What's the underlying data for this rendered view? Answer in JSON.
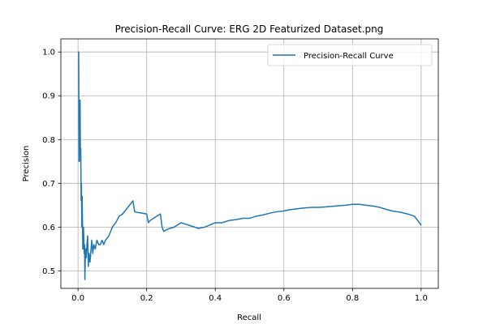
{
  "chart_data": {
    "type": "line",
    "title": "Precision-Recall Curve: ERG 2D Featurized Dataset.png",
    "xlabel": "Recall",
    "ylabel": "Precision",
    "xlim": [
      -0.05,
      1.05
    ],
    "ylim": [
      0.46,
      1.03
    ],
    "x_ticks": [
      0.0,
      0.2,
      0.4,
      0.6,
      0.8,
      1.0
    ],
    "x_tick_labels": [
      "0.0",
      "0.2",
      "0.4",
      "0.6",
      "0.8",
      "1.0"
    ],
    "y_ticks": [
      0.5,
      0.6,
      0.7,
      0.8,
      0.9,
      1.0
    ],
    "y_tick_labels": [
      "0.5",
      "0.6",
      "0.7",
      "0.8",
      "0.9",
      "1.0"
    ],
    "grid": true,
    "legend_position": "top-right",
    "series": [
      {
        "name": "Precision-Recall Curve",
        "color": "#1f77b4",
        "x": [
          0.0,
          0.002,
          0.003,
          0.004,
          0.005,
          0.006,
          0.007,
          0.008,
          0.009,
          0.01,
          0.011,
          0.012,
          0.014,
          0.016,
          0.018,
          0.019,
          0.02,
          0.021,
          0.022,
          0.024,
          0.026,
          0.028,
          0.03,
          0.032,
          0.035,
          0.038,
          0.04,
          0.043,
          0.046,
          0.05,
          0.055,
          0.06,
          0.065,
          0.07,
          0.075,
          0.08,
          0.09,
          0.1,
          0.11,
          0.12,
          0.13,
          0.14,
          0.15,
          0.16,
          0.165,
          0.17,
          0.2,
          0.205,
          0.21,
          0.22,
          0.23,
          0.24,
          0.245,
          0.25,
          0.26,
          0.28,
          0.3,
          0.32,
          0.34,
          0.35,
          0.37,
          0.4,
          0.42,
          0.44,
          0.46,
          0.48,
          0.5,
          0.52,
          0.54,
          0.56,
          0.58,
          0.6,
          0.62,
          0.65,
          0.68,
          0.7,
          0.72,
          0.75,
          0.78,
          0.8,
          0.82,
          0.84,
          0.86,
          0.88,
          0.9,
          0.92,
          0.94,
          0.96,
          0.98,
          0.99,
          1.0
        ],
        "y": [
          1.0,
          1.0,
          0.75,
          0.86,
          0.8,
          0.89,
          0.75,
          0.78,
          0.66,
          0.7,
          0.6,
          0.67,
          0.55,
          0.6,
          0.54,
          0.56,
          0.48,
          0.52,
          0.55,
          0.53,
          0.56,
          0.58,
          0.51,
          0.54,
          0.52,
          0.55,
          0.57,
          0.54,
          0.56,
          0.55,
          0.57,
          0.56,
          0.56,
          0.57,
          0.56,
          0.57,
          0.58,
          0.6,
          0.61,
          0.625,
          0.63,
          0.64,
          0.65,
          0.66,
          0.635,
          0.634,
          0.63,
          0.61,
          0.615,
          0.62,
          0.625,
          0.63,
          0.6,
          0.59,
          0.595,
          0.6,
          0.61,
          0.605,
          0.6,
          0.597,
          0.6,
          0.61,
          0.61,
          0.615,
          0.617,
          0.62,
          0.62,
          0.625,
          0.628,
          0.632,
          0.635,
          0.637,
          0.64,
          0.643,
          0.645,
          0.645,
          0.646,
          0.648,
          0.65,
          0.652,
          0.652,
          0.65,
          0.648,
          0.645,
          0.64,
          0.636,
          0.634,
          0.63,
          0.625,
          0.615,
          0.604
        ]
      }
    ]
  }
}
